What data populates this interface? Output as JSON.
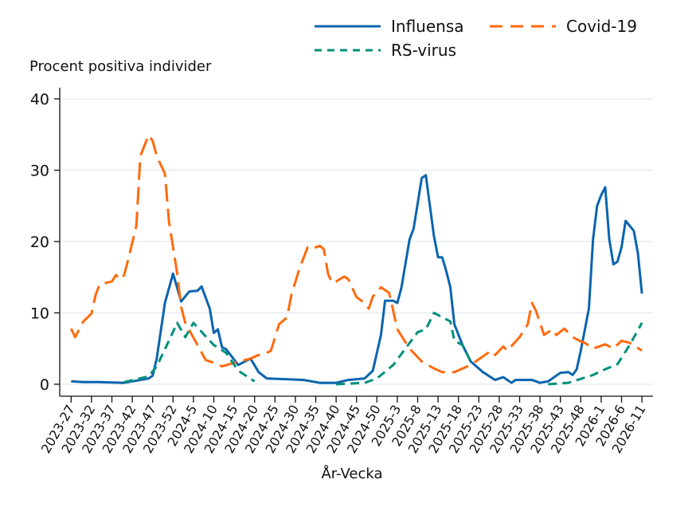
{
  "chart_data": {
    "type": "line",
    "ylabel": "Procent positiva individer",
    "xlabel": "År-Vecka",
    "ylim": [
      0,
      40
    ],
    "yticks": [
      0,
      10,
      20,
      30,
      40
    ],
    "grid": true,
    "legend_position": "top-right",
    "x_ticks": [
      "2023-27",
      "2023-32",
      "2023-37",
      "2023-42",
      "2023-47",
      "2023-52",
      "2024-5",
      "2024-10",
      "2024-15",
      "2024-20",
      "2024-25",
      "2024-30",
      "2024-35",
      "2024-40",
      "2024-45",
      "2024-50",
      "2025-3",
      "2025-8",
      "2025-13",
      "2025-18",
      "2025-23",
      "2025-28",
      "2025-33",
      "2025-38",
      "2025-43",
      "2025-48",
      "2026-1",
      "2026-6",
      "2026-11"
    ],
    "series": [
      {
        "name": "Influensa",
        "color": "#0b64ae",
        "style": "solid",
        "segments": [
          [
            [
              "2023-27",
              0.4
            ],
            [
              "2023-30",
              0.3
            ],
            [
              "2023-34",
              0.3
            ],
            [
              "2023-40",
              0.2
            ],
            [
              "2023-46",
              0.8
            ],
            [
              "2023-47",
              1.2
            ],
            [
              "2023-48",
              3.6
            ],
            [
              "2023-50",
              11.4
            ],
            [
              "2023-52",
              15.5
            ],
            [
              "2024-2",
              11.6
            ],
            [
              "2024-4",
              13.0
            ],
            [
              "2024-6",
              13.1
            ],
            [
              "2024-7",
              13.7
            ],
            [
              "2024-9",
              10.6
            ],
            [
              "2024-10",
              7.2
            ],
            [
              "2024-11",
              7.7
            ],
            [
              "2024-12",
              5.2
            ],
            [
              "2024-13",
              4.9
            ],
            [
              "2024-16",
              2.7
            ],
            [
              "2024-19",
              3.6
            ],
            [
              "2024-21",
              1.7
            ],
            [
              "2024-23",
              0.8
            ],
            [
              "2024-28",
              0.7
            ],
            [
              "2024-32",
              0.6
            ],
            [
              "2024-36",
              0.2
            ],
            [
              "2024-40",
              0.2
            ],
            [
              "2024-43",
              0.6
            ],
            [
              "2024-47",
              0.8
            ],
            [
              "2024-49",
              1.9
            ],
            [
              "2024-51",
              6.9
            ],
            [
              "2024-52",
              11.7
            ],
            [
              "2025-2",
              11.7
            ],
            [
              "2025-3",
              11.4
            ],
            [
              "2025-4",
              13.5
            ],
            [
              "2025-6",
              20.3
            ],
            [
              "2025-7",
              21.8
            ],
            [
              "2025-9",
              28.9
            ],
            [
              "2025-10",
              29.3
            ],
            [
              "2025-12",
              20.7
            ],
            [
              "2025-13",
              17.8
            ],
            [
              "2025-14",
              17.8
            ],
            [
              "2025-15",
              15.9
            ],
            [
              "2025-16",
              13.6
            ],
            [
              "2025-17",
              8.4
            ],
            [
              "2025-19",
              5.5
            ],
            [
              "2025-21",
              3.2
            ],
            [
              "2025-24",
              1.7
            ],
            [
              "2025-27",
              0.6
            ],
            [
              "2025-29",
              1.0
            ],
            [
              "2025-31",
              0.2
            ],
            [
              "2025-32",
              0.6
            ],
            [
              "2025-36",
              0.6
            ],
            [
              "2025-38",
              0.2
            ],
            [
              "2025-40",
              0.4
            ],
            [
              "2025-41",
              0.8
            ],
            [
              "2025-43",
              1.6
            ],
            [
              "2025-45",
              1.7
            ],
            [
              "2025-46",
              1.3
            ],
            [
              "2025-47",
              2.1
            ],
            [
              "2025-48",
              4.7
            ],
            [
              "2025-50",
              10.6
            ],
            [
              "2025-51",
              20.3
            ],
            [
              "2025-52",
              25.0
            ],
            [
              "2026-1",
              26.5
            ],
            [
              "2026-2",
              27.6
            ],
            [
              "2026-3",
              20.3
            ],
            [
              "2026-4",
              16.8
            ],
            [
              "2026-5",
              17.2
            ],
            [
              "2026-6",
              19.2
            ],
            [
              "2026-7",
              22.9
            ],
            [
              "2026-9",
              21.5
            ],
            [
              "2026-10",
              18.4
            ],
            [
              "2026-11",
              12.7
            ]
          ]
        ]
      },
      {
        "name": "Covid-19",
        "color": "#ff6a0d",
        "style": "dash",
        "segments": [
          [
            [
              "2023-27",
              7.8
            ],
            [
              "2023-28",
              6.6
            ],
            [
              "2023-30",
              8.8
            ],
            [
              "2023-32",
              9.9
            ],
            [
              "2023-33",
              12.5
            ],
            [
              "2023-34",
              14.0
            ],
            [
              "2023-37",
              14.4
            ],
            [
              "2023-38",
              15.3
            ],
            [
              "2023-39",
              14.7
            ],
            [
              "2023-40",
              15.3
            ],
            [
              "2023-41",
              17.5
            ],
            [
              "2023-43",
              22.2
            ],
            [
              "2023-44",
              32.0
            ],
            [
              "2023-46",
              34.9
            ],
            [
              "2023-47",
              34.1
            ],
            [
              "2023-48",
              32.0
            ],
            [
              "2023-50",
              29.5
            ],
            [
              "2023-51",
              22.8
            ],
            [
              "2024-1",
              15.6
            ],
            [
              "2024-2",
              10.8
            ],
            [
              "2024-3",
              8.6
            ],
            [
              "2024-6",
              5.5
            ],
            [
              "2024-8",
              3.4
            ],
            [
              "2024-10",
              3.0
            ],
            [
              "2024-12",
              2.5
            ],
            [
              "2024-15",
              3.0
            ],
            [
              "2024-19",
              3.6
            ],
            [
              "2024-21",
              4.1
            ],
            [
              "2024-23",
              4.4
            ],
            [
              "2024-24",
              4.7
            ],
            [
              "2024-26",
              8.4
            ],
            [
              "2024-28",
              9.4
            ],
            [
              "2024-29",
              12.5
            ],
            [
              "2024-31",
              16.2
            ],
            [
              "2024-33",
              19.2
            ],
            [
              "2024-34",
              19.0
            ],
            [
              "2024-36",
              19.4
            ],
            [
              "2024-37",
              18.9
            ],
            [
              "2024-38",
              15.5
            ],
            [
              "2024-39",
              14.2
            ],
            [
              "2024-40",
              14.4
            ],
            [
              "2024-42",
              15.1
            ],
            [
              "2024-43",
              14.7
            ],
            [
              "2024-45",
              12.2
            ],
            [
              "2024-47",
              11.4
            ],
            [
              "2024-48",
              10.6
            ],
            [
              "2024-49",
              12.3
            ],
            [
              "2024-50",
              12.8
            ],
            [
              "2024-51",
              13.6
            ],
            [
              "2025-1",
              12.8
            ],
            [
              "2025-2",
              10.3
            ],
            [
              "2025-3",
              7.7
            ],
            [
              "2025-6",
              5.0
            ],
            [
              "2025-9",
              3.2
            ],
            [
              "2025-12",
              2.2
            ],
            [
              "2025-14",
              1.7
            ],
            [
              "2025-17",
              1.7
            ],
            [
              "2025-21",
              2.7
            ],
            [
              "2025-26",
              4.7
            ],
            [
              "2025-27",
              4.1
            ],
            [
              "2025-29",
              5.3
            ],
            [
              "2025-30",
              4.7
            ],
            [
              "2025-33",
              6.6
            ],
            [
              "2025-35",
              8.4
            ],
            [
              "2025-36",
              11.4
            ],
            [
              "2025-37",
              10.3
            ],
            [
              "2025-39",
              6.9
            ],
            [
              "2025-41",
              7.7
            ],
            [
              "2025-42",
              6.9
            ],
            [
              "2025-44",
              7.8
            ],
            [
              "2025-46",
              6.6
            ],
            [
              "2025-48",
              6.0
            ],
            [
              "2025-49",
              5.8
            ],
            [
              "2025-51",
              5.0
            ],
            [
              "2026-2",
              5.6
            ],
            [
              "2026-4",
              5.0
            ],
            [
              "2026-6",
              6.1
            ],
            [
              "2026-8",
              5.8
            ],
            [
              "2026-11",
              4.7
            ]
          ]
        ]
      },
      {
        "name": "RS-virus",
        "color": "#00907a",
        "style": "shortdash",
        "segments": [
          [
            [
              "2023-40",
              0.3
            ],
            [
              "2023-46",
              1.1
            ],
            [
              "2023-48",
              2.5
            ],
            [
              "2023-51",
              6.1
            ],
            [
              "2024-1",
              8.6
            ],
            [
              "2024-3",
              6.6
            ],
            [
              "2024-5",
              8.6
            ],
            [
              "2024-8",
              6.7
            ],
            [
              "2024-10",
              5.5
            ],
            [
              "2024-13",
              4.4
            ],
            [
              "2024-16",
              1.9
            ],
            [
              "2024-20",
              0.4
            ]
          ],
          [
            [
              "2024-40",
              0.0
            ],
            [
              "2024-47",
              0.2
            ],
            [
              "2024-50",
              0.8
            ],
            [
              "2025-2",
              2.7
            ],
            [
              "2025-5",
              5.0
            ],
            [
              "2025-8",
              7.3
            ],
            [
              "2025-10",
              7.7
            ],
            [
              "2025-12",
              10.0
            ],
            [
              "2025-16",
              8.8
            ],
            [
              "2025-17",
              6.1
            ],
            [
              "2025-19",
              5.5
            ],
            [
              "2025-21",
              3.2
            ]
          ],
          [
            [
              "2025-40",
              0.0
            ],
            [
              "2025-45",
              0.2
            ],
            [
              "2025-51",
              1.3
            ],
            [
              "2026-2",
              2.1
            ],
            [
              "2026-5",
              2.8
            ],
            [
              "2026-8",
              5.5
            ],
            [
              "2026-11",
              8.6
            ]
          ]
        ]
      }
    ]
  }
}
